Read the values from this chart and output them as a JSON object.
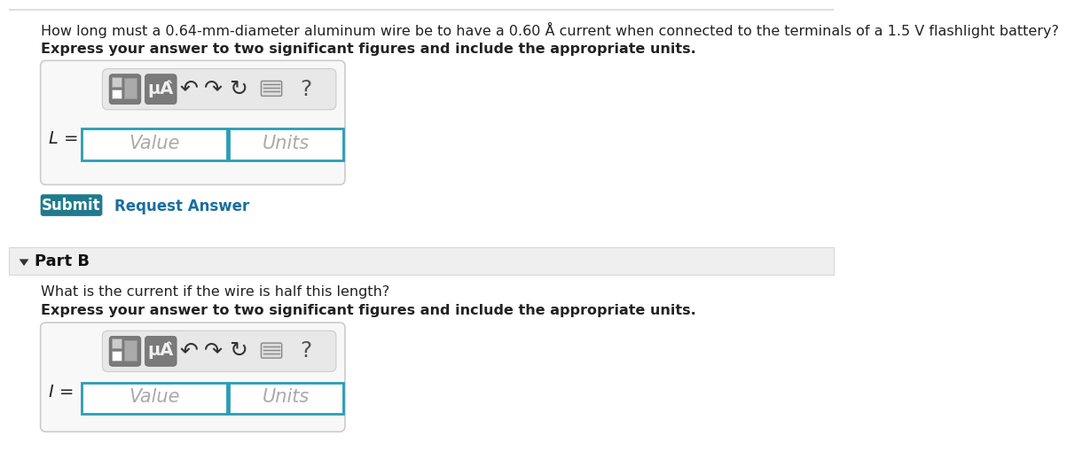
{
  "bg_color": "#ffffff",
  "part_b_bg": "#efefef",
  "title_text": "How long must a 0.64-mm-diameter aluminum wire be to have a 0.60 Å current when connected to the terminals of a 1.5 V flashlight battery?",
  "bold_instruction": "Express your answer to two significant figures and include the appropriate units.",
  "part_b_label": "Part B",
  "part_b_question": "What is the current if the wire is half this length?",
  "submit_label": "Submit",
  "request_answer_label": "Request Answer",
  "submit_bg": "#217a8c",
  "submit_text_color": "#ffffff",
  "request_answer_color": "#1a6ea0",
  "box_border": "#cccccc",
  "input_border_active": "#2a9db5",
  "placeholder_color": "#aaaaaa",
  "toolbar_bg": "#e5e5e5",
  "toolbar_border": "#cccccc",
  "icon_bg": "#8a8a8a",
  "icon_bg2": "#9a9a9a",
  "value_placeholder": "Value",
  "units_placeholder": "Units",
  "L_label": "L =",
  "I_label": "I =",
  "question_mark": "?",
  "mu_A_label": "μÂ",
  "arrow_color": "#333333",
  "part_b_text_color": "#222222",
  "separator_color": "#d8d8d8"
}
